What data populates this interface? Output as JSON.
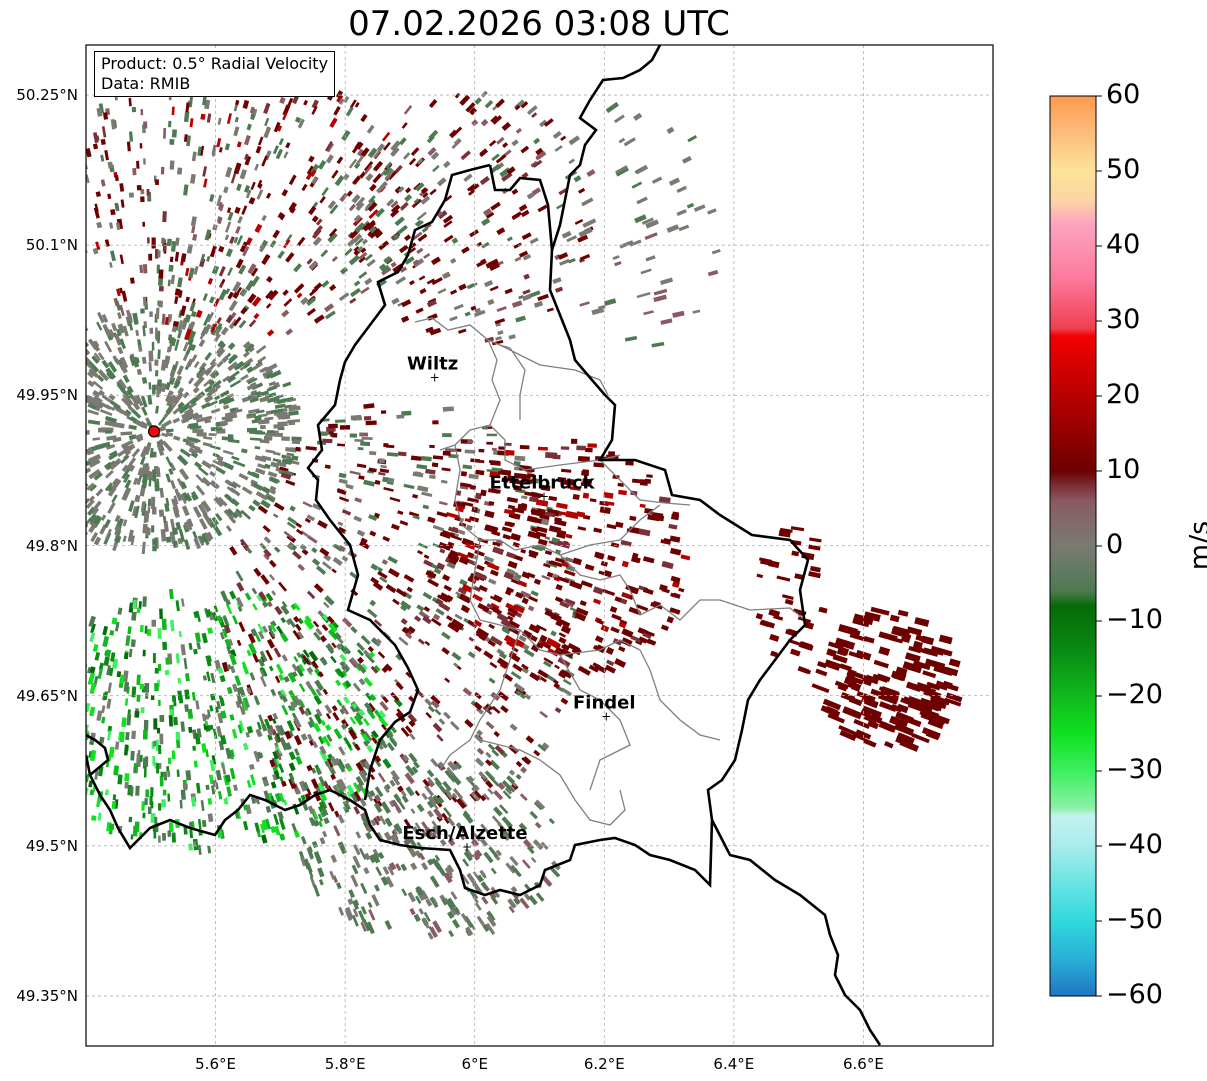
{
  "title": "07.02.2026 03:08 UTC",
  "info_box": {
    "product": "Product: 0.5° Radial Velocity",
    "data": "Data: RMIB"
  },
  "map": {
    "lon_range": [
      5.4,
      6.8
    ],
    "lat_range": [
      49.3,
      50.3
    ],
    "lat_ticks": [
      {
        "value": 50.25,
        "label": "50.25°N"
      },
      {
        "value": 50.1,
        "label": "50.1°N"
      },
      {
        "value": 49.95,
        "label": "49.95°N"
      },
      {
        "value": 49.8,
        "label": "49.8°N"
      },
      {
        "value": 49.65,
        "label": "49.65°N"
      },
      {
        "value": 49.5,
        "label": "49.5°N"
      },
      {
        "value": 49.35,
        "label": "49.35°N"
      }
    ],
    "lon_ticks": [
      {
        "value": 5.6,
        "label": "5.6°E"
      },
      {
        "value": 5.8,
        "label": "5.8°E"
      },
      {
        "value": 6.0,
        "label": "6°E"
      },
      {
        "value": 6.2,
        "label": "6.2°E"
      },
      {
        "value": 6.4,
        "label": "6.4°E"
      },
      {
        "value": 6.6,
        "label": "6.6°E"
      }
    ],
    "grid": true,
    "radar_site": {
      "lon": 5.505,
      "lat": 49.914,
      "color": "#ff0000"
    },
    "cities": [
      {
        "name": "Wiltz",
        "lon": 5.935,
        "lat": 49.966
      },
      {
        "name": "Ettelbruck",
        "lon": 6.104,
        "lat": 49.847
      },
      {
        "name": "Findel",
        "lon": 6.2,
        "lat": 49.627
      },
      {
        "name": "Esch/Alzette",
        "lon": 5.985,
        "lat": 49.497
      }
    ]
  },
  "colorbar": {
    "unit": "m/s",
    "range": [
      -60,
      60
    ],
    "ticks": [
      "60",
      "50",
      "40",
      "30",
      "20",
      "10",
      "0",
      "−10",
      "−20",
      "−30",
      "−40",
      "−50",
      "−60"
    ],
    "stops": [
      {
        "v": -60,
        "color": "#1f77c4"
      },
      {
        "v": -55,
        "color": "#2ab0d6"
      },
      {
        "v": -50,
        "color": "#30d8dc"
      },
      {
        "v": -45,
        "color": "#6ae4e4"
      },
      {
        "v": -40,
        "color": "#a8ecec"
      },
      {
        "v": -36,
        "color": "#c4f2f0"
      },
      {
        "v": -35,
        "color": "#8ef0a8"
      },
      {
        "v": -30,
        "color": "#3cf060"
      },
      {
        "v": -25,
        "color": "#10e020"
      },
      {
        "v": -20,
        "color": "#10b81e"
      },
      {
        "v": -14,
        "color": "#0a8a14"
      },
      {
        "v": -8,
        "color": "#056b08"
      },
      {
        "v": -6,
        "color": "#4e7a52"
      },
      {
        "v": 0,
        "color": "#7a7a72"
      },
      {
        "v": 6,
        "color": "#8a5a62"
      },
      {
        "v": 8,
        "color": "#7a3038"
      },
      {
        "v": 10,
        "color": "#6e0000"
      },
      {
        "v": 20,
        "color": "#b80000"
      },
      {
        "v": 28,
        "color": "#f40000"
      },
      {
        "v": 29,
        "color": "#f04050"
      },
      {
        "v": 36,
        "color": "#fc7ca0"
      },
      {
        "v": 43,
        "color": "#fca4c0"
      },
      {
        "v": 46,
        "color": "#fcd4a4"
      },
      {
        "v": 50,
        "color": "#fde39a"
      },
      {
        "v": 55,
        "color": "#fdbc7a"
      },
      {
        "v": 60,
        "color": "#fe9a50"
      }
    ]
  }
}
